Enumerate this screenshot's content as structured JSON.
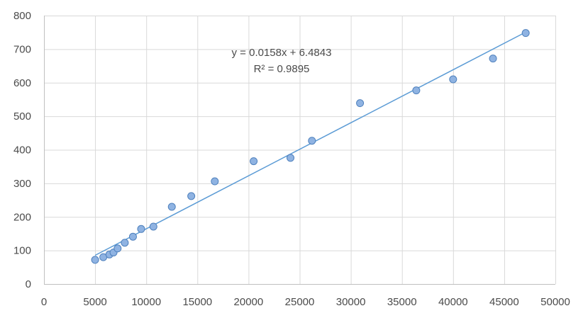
{
  "chart_data": {
    "type": "scatter",
    "x": [
      5000,
      5800,
      6400,
      6800,
      7200,
      7900,
      8700,
      9500,
      10700,
      12500,
      14400,
      16700,
      20500,
      24100,
      26200,
      30900,
      36400,
      40000,
      43900,
      47100
    ],
    "y": [
      72,
      80,
      88,
      94,
      106,
      123,
      141,
      164,
      171,
      230,
      262,
      306,
      366,
      376,
      427,
      539,
      577,
      610,
      672,
      748
    ],
    "xlim": [
      0,
      50000
    ],
    "ylim": [
      0,
      800
    ],
    "xticks": [
      0,
      5000,
      10000,
      15000,
      20000,
      25000,
      30000,
      35000,
      40000,
      45000,
      50000
    ],
    "yticks": [
      0,
      100,
      200,
      300,
      400,
      500,
      600,
      700,
      800
    ],
    "trendline": {
      "type": "linear",
      "slope": 0.0158,
      "intercept": 6.4843,
      "x_range": [
        5000,
        47100
      ],
      "equation_label": "y = 0.0158x + 6.4843",
      "r2_label": "R² = 0.9895"
    },
    "grid": true,
    "legend": "none",
    "title": "",
    "xlabel": "",
    "ylabel": "",
    "colors": {
      "marker_fill": "#8fb3e2",
      "marker_stroke": "#4f81bd",
      "trendline": "#5b9bd5",
      "grid": "#d9d9d9",
      "axis": "#bfbfbf"
    }
  }
}
